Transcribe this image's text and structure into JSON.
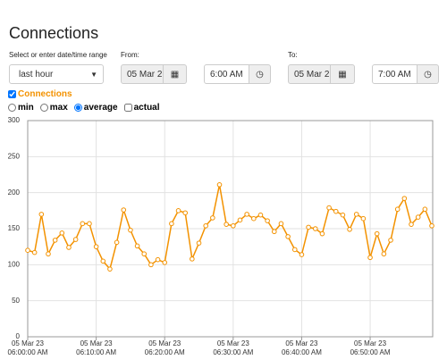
{
  "header": {
    "title": "Connections"
  },
  "filters": {
    "range_label": "Select or enter date/time range",
    "preset": "last hour",
    "from_label": "From:",
    "from_date": "05 Mar 2",
    "from_time": "6:00 AM",
    "to_label": "To:",
    "to_date": "05 Mar 2",
    "to_time": "7:00 AM"
  },
  "options": {
    "aggregations": [
      {
        "label": "min",
        "selected": false
      },
      {
        "label": "max",
        "selected": false
      },
      {
        "label": "average",
        "selected": true
      }
    ],
    "actual": {
      "label": "actual",
      "checked": false
    }
  },
  "chart_data": {
    "type": "line",
    "categories": [
      "05 Mar 23\n06:00:00 AM",
      null,
      null,
      null,
      null,
      null,
      null,
      null,
      null,
      null,
      "05 Mar 23\n06:10:00 AM",
      null,
      null,
      null,
      null,
      null,
      null,
      null,
      null,
      null,
      "05 Mar 23\n06:20:00 AM",
      null,
      null,
      null,
      null,
      null,
      null,
      null,
      null,
      null,
      "05 Mar 23\n06:30:00 AM",
      null,
      null,
      null,
      null,
      null,
      null,
      null,
      null,
      null,
      "05 Mar 23\n06:40:00 AM",
      null,
      null,
      null,
      null,
      null,
      null,
      null,
      null,
      null,
      "05 Mar 23\n06:50:00 AM",
      null,
      null,
      null,
      null,
      null,
      null,
      null,
      null,
      null
    ],
    "series": [
      {
        "name": "Connections",
        "color": "#f39200",
        "checked": true,
        "values": [
          120,
          117,
          170,
          115,
          134,
          144,
          124,
          135,
          157,
          157,
          125,
          105,
          94,
          131,
          176,
          148,
          126,
          115,
          100,
          107,
          103,
          157,
          175,
          172,
          108,
          130,
          154,
          165,
          211,
          156,
          154,
          162,
          170,
          164,
          169,
          161,
          146,
          157,
          139,
          121,
          114,
          152,
          150,
          143,
          179,
          174,
          169,
          149,
          170,
          164,
          110,
          143,
          115,
          134,
          177,
          192,
          156,
          166,
          177,
          154
        ]
      }
    ],
    "ylim": [
      0,
      300
    ],
    "yticks": [
      0,
      50,
      100,
      150,
      200,
      250,
      300
    ],
    "grid": true
  }
}
